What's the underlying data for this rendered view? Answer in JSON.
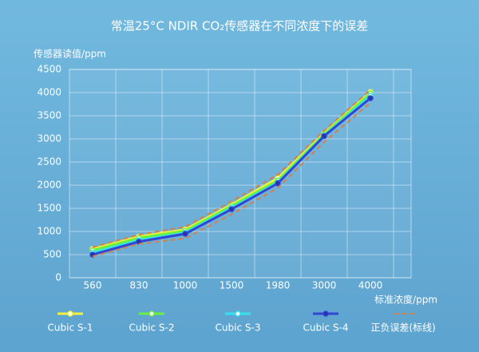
{
  "chart_data": {
    "type": "line",
    "title": "常温25°C NDIR CO₂传感器在不同浓度下的误差",
    "y_label": "传感器读值/ppm",
    "x_label": "标准浓度/ppm",
    "categories": [
      "560",
      "830",
      "1000",
      "1500",
      "1980",
      "3000",
      "4000"
    ],
    "ylim": [
      0,
      4500
    ],
    "yticks": [
      0,
      500,
      1000,
      1500,
      2000,
      2500,
      3000,
      3500,
      4000,
      4500
    ],
    "grid": true,
    "legend": "bottom",
    "series": [
      {
        "name": "Cubic S-1",
        "color": "#f2f23a",
        "values": [
          620,
          890,
          1040,
          1580,
          2150,
          3120,
          4010
        ]
      },
      {
        "name": "Cubic S-2",
        "color": "#6af03f",
        "values": [
          590,
          860,
          1010,
          1550,
          2100,
          3100,
          3980
        ]
      },
      {
        "name": "Cubic S-3",
        "color": "#35e2f2",
        "values": [
          540,
          810,
          970,
          1510,
          2060,
          3070,
          3930
        ]
      },
      {
        "name": "Cubic S-4",
        "color": "#3346d2",
        "values": [
          500,
          780,
          950,
          1480,
          2040,
          3060,
          3880
        ]
      },
      {
        "name": "正负误差(标线)",
        "color": "#cf834c",
        "dashed": true,
        "upper": [
          660,
          930,
          1100,
          1650,
          2230,
          3180,
          4060
        ],
        "lower": [
          460,
          730,
          850,
          1370,
          1940,
          2930,
          3780
        ]
      }
    ]
  }
}
